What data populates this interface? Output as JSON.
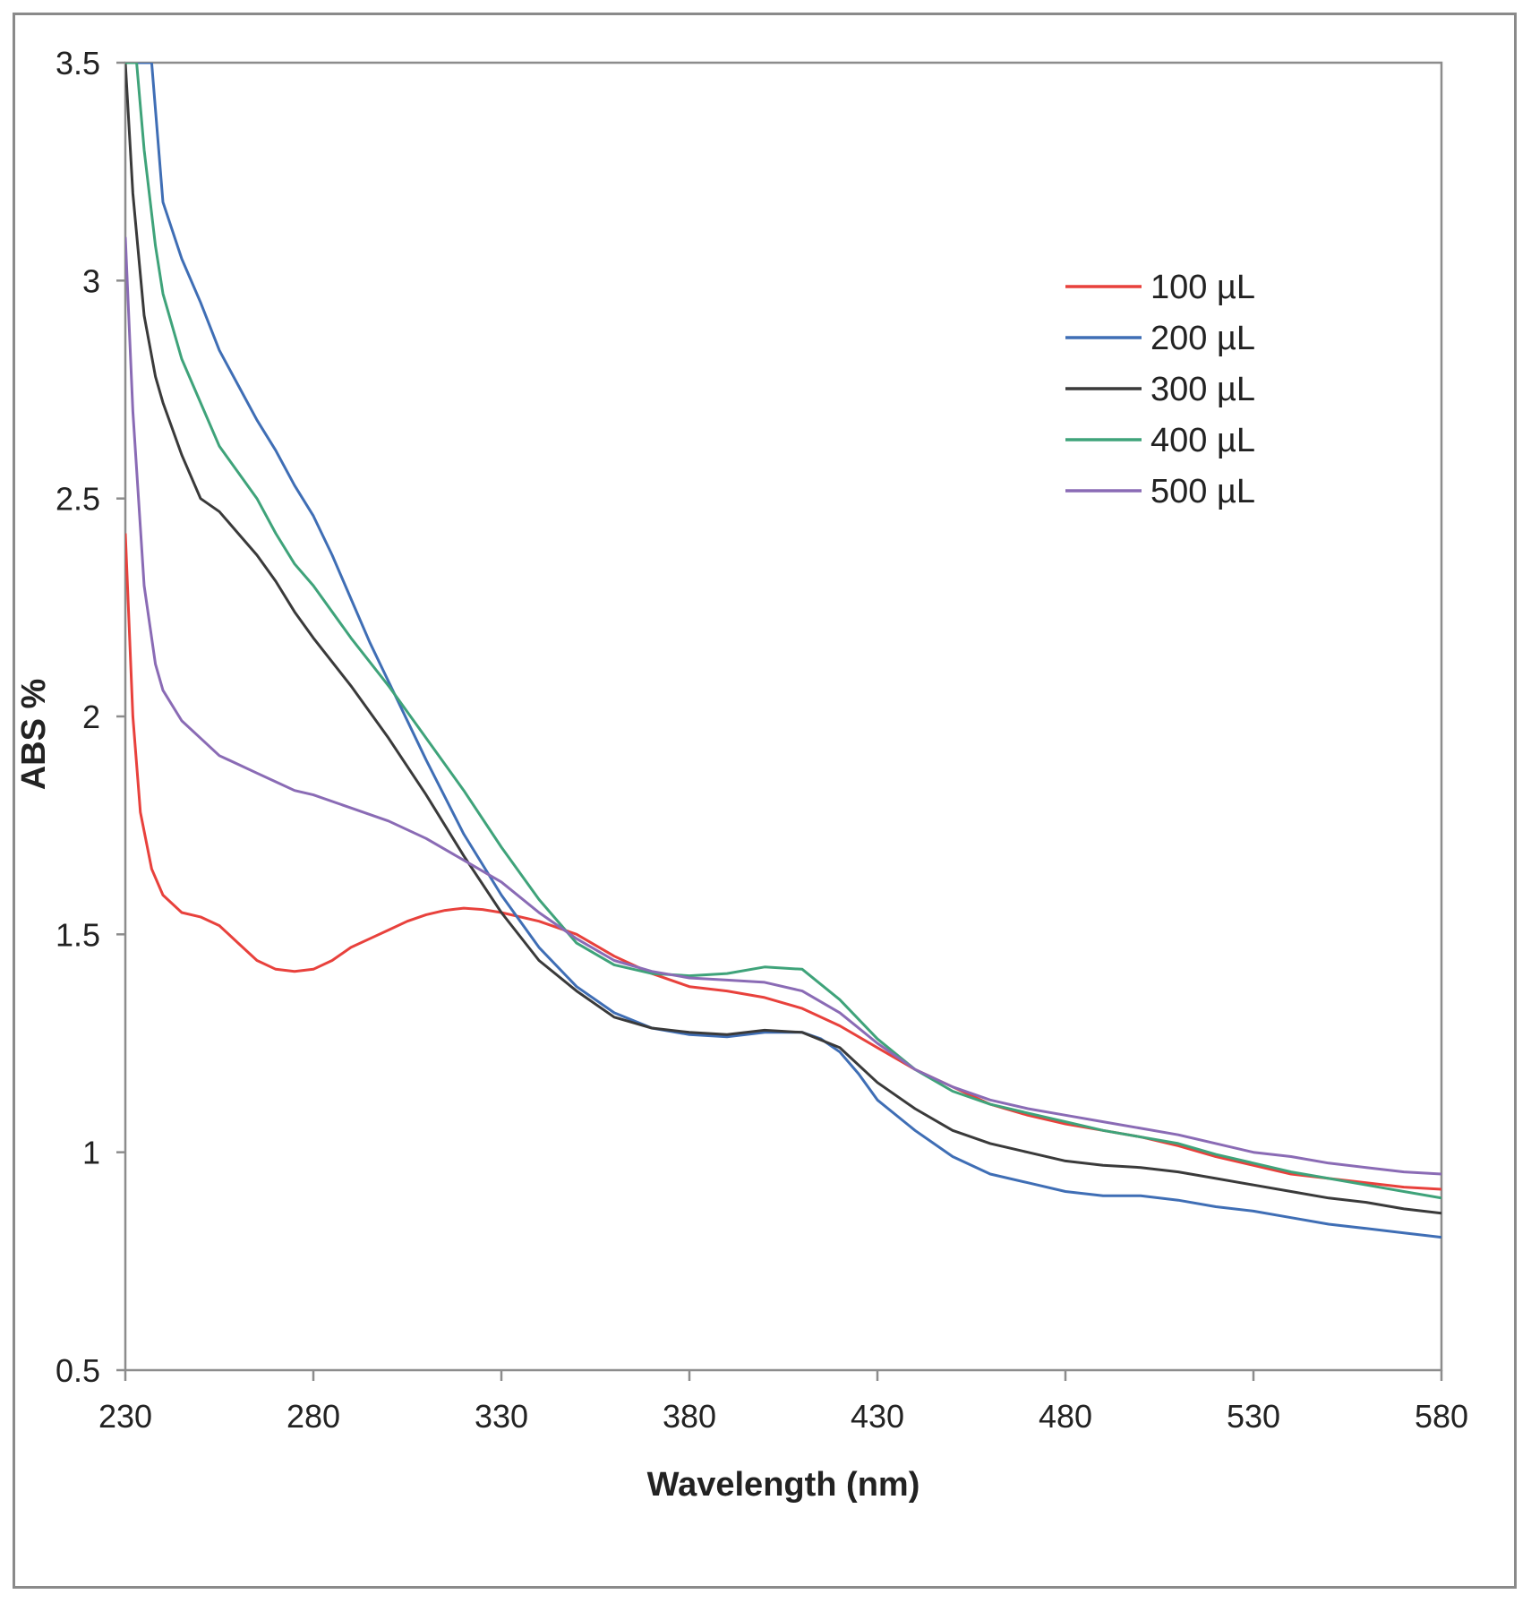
{
  "chart_data": {
    "type": "line",
    "title": "",
    "xlabel": "Wavelength (nm)",
    "ylabel": "ABS %",
    "xlim": [
      230,
      580
    ],
    "ylim": [
      0.5,
      3.5
    ],
    "xticks": [
      "230",
      "280",
      "330",
      "380",
      "430",
      "480",
      "530",
      "580"
    ],
    "yticks": [
      "0.5",
      "1",
      "1.5",
      "2",
      "2.5",
      "3",
      "3.5"
    ],
    "grid": false,
    "legend_position": "top-right",
    "series": [
      {
        "name": "100 µL",
        "color": "#e8413c",
        "points": [
          [
            230,
            2.42
          ],
          [
            232,
            2.0
          ],
          [
            234,
            1.78
          ],
          [
            237,
            1.65
          ],
          [
            240,
            1.59
          ],
          [
            245,
            1.55
          ],
          [
            250,
            1.54
          ],
          [
            255,
            1.52
          ],
          [
            260,
            1.48
          ],
          [
            265,
            1.44
          ],
          [
            270,
            1.42
          ],
          [
            275,
            1.415
          ],
          [
            280,
            1.42
          ],
          [
            285,
            1.44
          ],
          [
            290,
            1.47
          ],
          [
            295,
            1.49
          ],
          [
            300,
            1.51
          ],
          [
            305,
            1.53
          ],
          [
            310,
            1.545
          ],
          [
            315,
            1.555
          ],
          [
            320,
            1.56
          ],
          [
            325,
            1.557
          ],
          [
            330,
            1.55
          ],
          [
            340,
            1.53
          ],
          [
            350,
            1.5
          ],
          [
            360,
            1.45
          ],
          [
            370,
            1.41
          ],
          [
            380,
            1.38
          ],
          [
            390,
            1.37
          ],
          [
            400,
            1.355
          ],
          [
            410,
            1.33
          ],
          [
            420,
            1.29
          ],
          [
            430,
            1.24
          ],
          [
            440,
            1.19
          ],
          [
            450,
            1.15
          ],
          [
            460,
            1.11
          ],
          [
            470,
            1.085
          ],
          [
            480,
            1.065
          ],
          [
            490,
            1.05
          ],
          [
            500,
            1.035
          ],
          [
            510,
            1.015
          ],
          [
            520,
            0.99
          ],
          [
            530,
            0.97
          ],
          [
            540,
            0.95
          ],
          [
            550,
            0.94
          ],
          [
            560,
            0.93
          ],
          [
            570,
            0.92
          ],
          [
            580,
            0.915
          ]
        ]
      },
      {
        "name": "200 µL",
        "color": "#3f6eb5",
        "points": [
          [
            230,
            3.5
          ],
          [
            237,
            3.5
          ],
          [
            240,
            3.18
          ],
          [
            245,
            3.05
          ],
          [
            250,
            2.95
          ],
          [
            255,
            2.84
          ],
          [
            260,
            2.76
          ],
          [
            265,
            2.68
          ],
          [
            270,
            2.61
          ],
          [
            275,
            2.53
          ],
          [
            280,
            2.46
          ],
          [
            285,
            2.37
          ],
          [
            290,
            2.27
          ],
          [
            295,
            2.17
          ],
          [
            300,
            2.08
          ],
          [
            310,
            1.9
          ],
          [
            320,
            1.73
          ],
          [
            330,
            1.59
          ],
          [
            340,
            1.47
          ],
          [
            350,
            1.38
          ],
          [
            360,
            1.32
          ],
          [
            370,
            1.285
          ],
          [
            380,
            1.27
          ],
          [
            390,
            1.265
          ],
          [
            400,
            1.275
          ],
          [
            410,
            1.275
          ],
          [
            415,
            1.26
          ],
          [
            420,
            1.23
          ],
          [
            425,
            1.18
          ],
          [
            430,
            1.12
          ],
          [
            440,
            1.05
          ],
          [
            450,
            0.99
          ],
          [
            460,
            0.95
          ],
          [
            470,
            0.93
          ],
          [
            480,
            0.91
          ],
          [
            490,
            0.9
          ],
          [
            500,
            0.9
          ],
          [
            510,
            0.89
          ],
          [
            520,
            0.875
          ],
          [
            530,
            0.865
          ],
          [
            540,
            0.85
          ],
          [
            550,
            0.835
          ],
          [
            560,
            0.825
          ],
          [
            570,
            0.815
          ],
          [
            580,
            0.805
          ]
        ]
      },
      {
        "name": "300 µL",
        "color": "#3a3a3a",
        "points": [
          [
            230,
            3.5
          ],
          [
            232,
            3.2
          ],
          [
            235,
            2.92
          ],
          [
            238,
            2.78
          ],
          [
            240,
            2.72
          ],
          [
            245,
            2.6
          ],
          [
            250,
            2.5
          ],
          [
            255,
            2.47
          ],
          [
            260,
            2.42
          ],
          [
            265,
            2.37
          ],
          [
            270,
            2.31
          ],
          [
            275,
            2.24
          ],
          [
            280,
            2.18
          ],
          [
            290,
            2.07
          ],
          [
            300,
            1.95
          ],
          [
            310,
            1.82
          ],
          [
            320,
            1.68
          ],
          [
            330,
            1.55
          ],
          [
            340,
            1.44
          ],
          [
            350,
            1.37
          ],
          [
            360,
            1.31
          ],
          [
            370,
            1.285
          ],
          [
            380,
            1.275
          ],
          [
            390,
            1.27
          ],
          [
            400,
            1.28
          ],
          [
            410,
            1.275
          ],
          [
            420,
            1.24
          ],
          [
            430,
            1.16
          ],
          [
            440,
            1.1
          ],
          [
            450,
            1.05
          ],
          [
            460,
            1.02
          ],
          [
            470,
            1.0
          ],
          [
            480,
            0.98
          ],
          [
            490,
            0.97
          ],
          [
            500,
            0.965
          ],
          [
            510,
            0.955
          ],
          [
            520,
            0.94
          ],
          [
            530,
            0.925
          ],
          [
            540,
            0.91
          ],
          [
            550,
            0.895
          ],
          [
            560,
            0.885
          ],
          [
            570,
            0.87
          ],
          [
            580,
            0.86
          ]
        ]
      },
      {
        "name": "400 µL",
        "color": "#3fa37a",
        "points": [
          [
            230,
            3.5
          ],
          [
            233,
            3.5
          ],
          [
            235,
            3.3
          ],
          [
            238,
            3.08
          ],
          [
            240,
            2.97
          ],
          [
            245,
            2.82
          ],
          [
            250,
            2.72
          ],
          [
            255,
            2.62
          ],
          [
            260,
            2.56
          ],
          [
            265,
            2.5
          ],
          [
            270,
            2.42
          ],
          [
            275,
            2.35
          ],
          [
            280,
            2.3
          ],
          [
            290,
            2.18
          ],
          [
            300,
            2.07
          ],
          [
            310,
            1.95
          ],
          [
            320,
            1.83
          ],
          [
            330,
            1.7
          ],
          [
            340,
            1.58
          ],
          [
            350,
            1.48
          ],
          [
            360,
            1.43
          ],
          [
            370,
            1.41
          ],
          [
            380,
            1.405
          ],
          [
            390,
            1.41
          ],
          [
            400,
            1.425
          ],
          [
            410,
            1.42
          ],
          [
            420,
            1.35
          ],
          [
            430,
            1.26
          ],
          [
            440,
            1.19
          ],
          [
            450,
            1.14
          ],
          [
            460,
            1.11
          ],
          [
            470,
            1.09
          ],
          [
            480,
            1.07
          ],
          [
            490,
            1.05
          ],
          [
            500,
            1.035
          ],
          [
            510,
            1.02
          ],
          [
            520,
            0.995
          ],
          [
            530,
            0.975
          ],
          [
            540,
            0.955
          ],
          [
            550,
            0.94
          ],
          [
            560,
            0.925
          ],
          [
            570,
            0.91
          ],
          [
            580,
            0.895
          ]
        ]
      },
      {
        "name": "500 µL",
        "color": "#8a6bb5",
        "points": [
          [
            230,
            3.1
          ],
          [
            232,
            2.7
          ],
          [
            235,
            2.3
          ],
          [
            238,
            2.12
          ],
          [
            240,
            2.06
          ],
          [
            245,
            1.99
          ],
          [
            250,
            1.95
          ],
          [
            255,
            1.91
          ],
          [
            260,
            1.89
          ],
          [
            265,
            1.87
          ],
          [
            270,
            1.85
          ],
          [
            275,
            1.83
          ],
          [
            280,
            1.82
          ],
          [
            290,
            1.79
          ],
          [
            300,
            1.76
          ],
          [
            310,
            1.72
          ],
          [
            320,
            1.67
          ],
          [
            330,
            1.62
          ],
          [
            340,
            1.55
          ],
          [
            350,
            1.49
          ],
          [
            360,
            1.44
          ],
          [
            370,
            1.415
          ],
          [
            380,
            1.4
          ],
          [
            390,
            1.395
          ],
          [
            400,
            1.39
          ],
          [
            410,
            1.37
          ],
          [
            420,
            1.32
          ],
          [
            430,
            1.25
          ],
          [
            440,
            1.19
          ],
          [
            450,
            1.15
          ],
          [
            460,
            1.12
          ],
          [
            470,
            1.1
          ],
          [
            480,
            1.085
          ],
          [
            490,
            1.07
          ],
          [
            500,
            1.055
          ],
          [
            510,
            1.04
          ],
          [
            520,
            1.02
          ],
          [
            530,
            1.0
          ],
          [
            540,
            0.99
          ],
          [
            550,
            0.975
          ],
          [
            560,
            0.965
          ],
          [
            570,
            0.955
          ],
          [
            580,
            0.95
          ]
        ]
      }
    ]
  }
}
